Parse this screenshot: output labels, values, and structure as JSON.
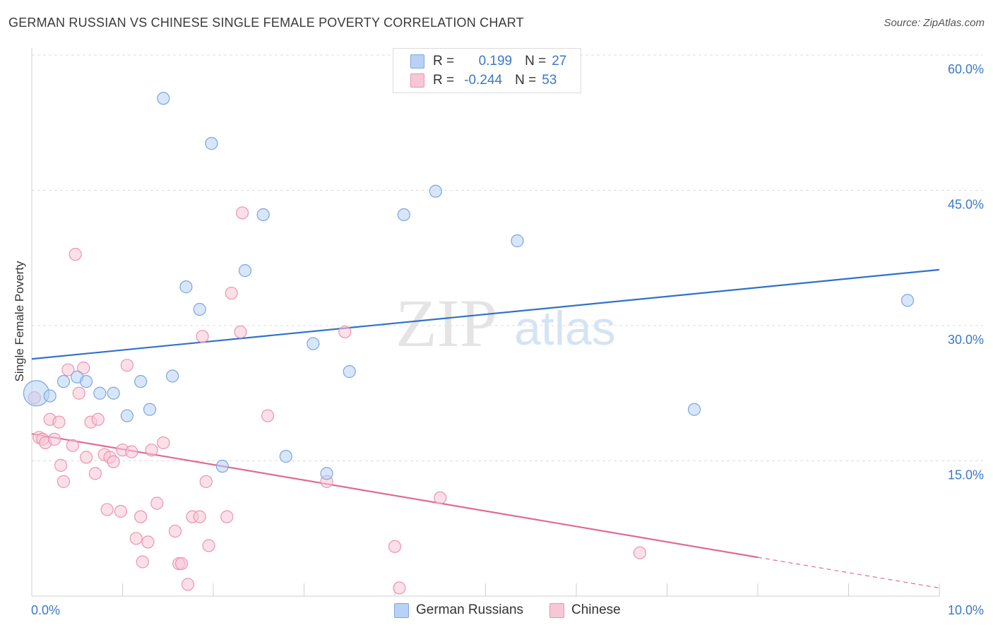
{
  "title": "GERMAN RUSSIAN VS CHINESE SINGLE FEMALE POVERTY CORRELATION CHART",
  "source": "Source: ZipAtlas.com",
  "watermark": {
    "zip": "ZIP",
    "atlas": "atlas"
  },
  "legend_top": {
    "rows": [
      {
        "r_label": "R =",
        "r_value": "0.199",
        "n_label": "N =",
        "n_value": "27",
        "color": "#b8d2f5",
        "stroke": "#7aa6e0"
      },
      {
        "r_label": "R =",
        "r_value": "-0.244",
        "n_label": "N =",
        "n_value": "53",
        "color": "#f8c7d6",
        "stroke": "#ec93b0"
      }
    ]
  },
  "legend_bottom": [
    {
      "label": "German Russians",
      "color": "#b8d2f5",
      "stroke": "#7aa6e0"
    },
    {
      "label": "Chinese",
      "color": "#f8c7d6",
      "stroke": "#ec93b0"
    }
  ],
  "chart_data": {
    "type": "scatter",
    "title": "GERMAN RUSSIAN VS CHINESE SINGLE FEMALE POVERTY CORRELATION CHART",
    "xlabel": "",
    "ylabel": "Single Female Poverty",
    "xlim": [
      0,
      10
    ],
    "ylim": [
      0,
      60
    ],
    "x_tick_labels": [
      "0.0%",
      "10.0%"
    ],
    "y_tick_labels": [
      "15.0%",
      "30.0%",
      "45.0%",
      "60.0%"
    ],
    "y_ticks": [
      15,
      30,
      45,
      60
    ],
    "grid": true,
    "series": [
      {
        "name": "German Russians",
        "color": "#7aa6e0",
        "fill": "#b8d2f5",
        "line_color": "#2f72c8",
        "trend": {
          "x": [
            0,
            10
          ],
          "y": [
            26.3,
            36.2
          ]
        },
        "points": [
          [
            0.05,
            22.5
          ],
          [
            0.2,
            22.2
          ],
          [
            0.35,
            23.8
          ],
          [
            0.5,
            24.3
          ],
          [
            0.6,
            23.8
          ],
          [
            0.75,
            22.5
          ],
          [
            0.9,
            22.5
          ],
          [
            1.05,
            20.0
          ],
          [
            1.2,
            23.8
          ],
          [
            1.3,
            20.7
          ],
          [
            1.45,
            55.2
          ],
          [
            1.55,
            24.4
          ],
          [
            1.7,
            34.3
          ],
          [
            1.85,
            31.8
          ],
          [
            1.98,
            50.2
          ],
          [
            2.1,
            14.4
          ],
          [
            2.35,
            36.1
          ],
          [
            2.55,
            42.3
          ],
          [
            2.8,
            15.5
          ],
          [
            3.1,
            28.0
          ],
          [
            3.25,
            13.6
          ],
          [
            3.5,
            24.9
          ],
          [
            4.1,
            42.3
          ],
          [
            4.45,
            44.9
          ],
          [
            5.35,
            39.4
          ],
          [
            7.3,
            20.7
          ],
          [
            9.65,
            32.8
          ]
        ]
      },
      {
        "name": "Chinese",
        "color": "#ec93b0",
        "fill": "#f8c7d6",
        "line_color": "#e06a94",
        "trend": {
          "x": [
            0,
            8.0
          ],
          "y": [
            18.0,
            4.3
          ]
        },
        "trend_dashed": {
          "x": [
            8.0,
            10
          ],
          "y": [
            4.3,
            0.9
          ]
        },
        "points": [
          [
            0.03,
            22.0
          ],
          [
            0.08,
            17.6
          ],
          [
            0.12,
            17.4
          ],
          [
            0.15,
            17.0
          ],
          [
            0.2,
            19.6
          ],
          [
            0.25,
            17.4
          ],
          [
            0.3,
            19.3
          ],
          [
            0.32,
            14.5
          ],
          [
            0.35,
            12.7
          ],
          [
            0.4,
            25.1
          ],
          [
            0.45,
            16.7
          ],
          [
            0.48,
            37.9
          ],
          [
            0.52,
            22.5
          ],
          [
            0.57,
            25.3
          ],
          [
            0.6,
            15.4
          ],
          [
            0.65,
            19.3
          ],
          [
            0.7,
            13.6
          ],
          [
            0.73,
            19.6
          ],
          [
            0.8,
            15.7
          ],
          [
            0.83,
            9.6
          ],
          [
            0.86,
            15.4
          ],
          [
            0.9,
            14.9
          ],
          [
            0.98,
            9.4
          ],
          [
            1.0,
            16.2
          ],
          [
            1.05,
            25.6
          ],
          [
            1.1,
            16.0
          ],
          [
            1.15,
            6.4
          ],
          [
            1.2,
            8.8
          ],
          [
            1.22,
            3.8
          ],
          [
            1.28,
            6.0
          ],
          [
            1.32,
            16.2
          ],
          [
            1.38,
            10.3
          ],
          [
            1.45,
            17.0
          ],
          [
            1.58,
            7.2
          ],
          [
            1.62,
            3.6
          ],
          [
            1.65,
            3.6
          ],
          [
            1.72,
            1.3
          ],
          [
            1.77,
            8.8
          ],
          [
            1.85,
            8.8
          ],
          [
            1.88,
            28.8
          ],
          [
            1.92,
            12.7
          ],
          [
            1.95,
            5.6
          ],
          [
            2.15,
            8.8
          ],
          [
            2.2,
            33.6
          ],
          [
            2.3,
            29.3
          ],
          [
            2.32,
            42.5
          ],
          [
            2.6,
            20.0
          ],
          [
            3.25,
            12.7
          ],
          [
            3.45,
            29.3
          ],
          [
            4.0,
            5.5
          ],
          [
            4.05,
            0.9
          ],
          [
            4.5,
            10.9
          ],
          [
            6.7,
            4.8
          ]
        ]
      }
    ]
  }
}
